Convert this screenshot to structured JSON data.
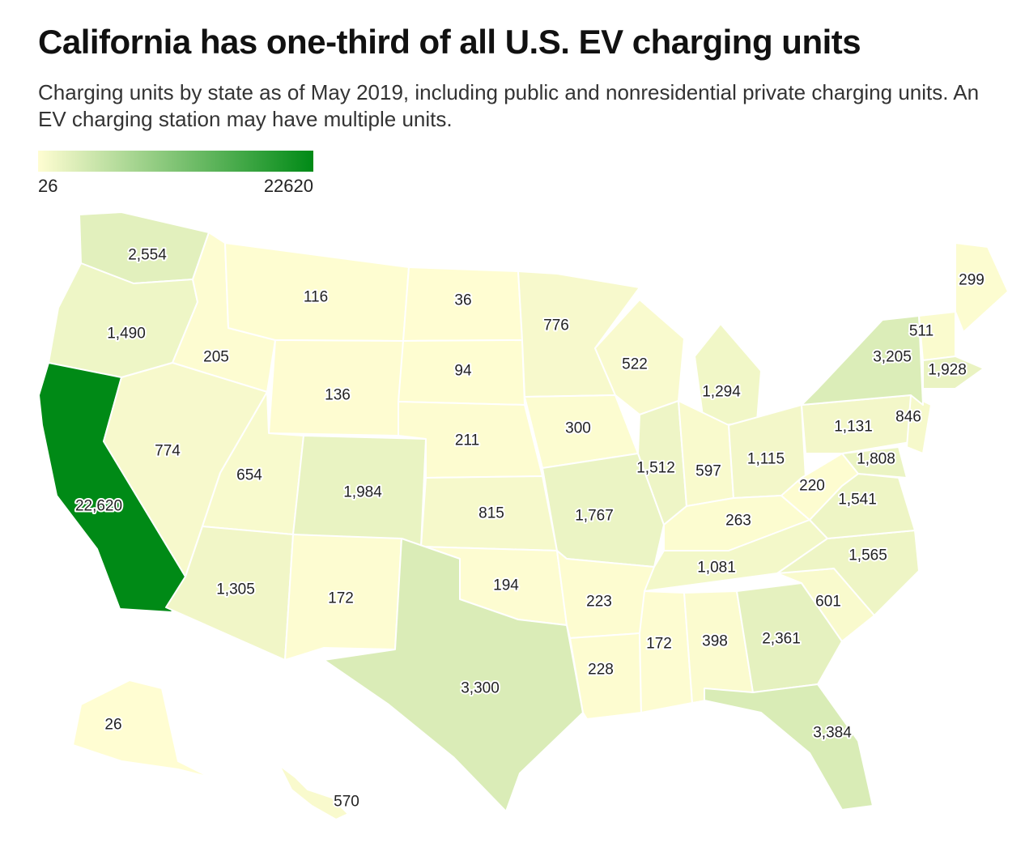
{
  "title": "California has one-third of all U.S. EV charging units",
  "subtitle": "Charging units by state as of May 2019, including public and nonresidential private charging units. An EV charging station may have multiple units.",
  "legend": {
    "min_label": "26",
    "max_label": "22620",
    "min": 26,
    "max": 22620,
    "color_low": "#fffdd2",
    "color_high": "#008a16"
  },
  "states": [
    {
      "id": "WA",
      "label": "2,554",
      "value": 2554
    },
    {
      "id": "OR",
      "label": "1,490",
      "value": 1490
    },
    {
      "id": "CA",
      "label": "22,620",
      "value": 22620
    },
    {
      "id": "ID",
      "label": "205",
      "value": 205
    },
    {
      "id": "NV",
      "label": "774",
      "value": 774
    },
    {
      "id": "MT",
      "label": "116",
      "value": 116
    },
    {
      "id": "WY",
      "label": "136",
      "value": 136
    },
    {
      "id": "UT",
      "label": "654",
      "value": 654
    },
    {
      "id": "AZ",
      "label": "1,305",
      "value": 1305
    },
    {
      "id": "CO",
      "label": "1,984",
      "value": 1984
    },
    {
      "id": "NM",
      "label": "172",
      "value": 172
    },
    {
      "id": "ND",
      "label": "36",
      "value": 36
    },
    {
      "id": "SD",
      "label": "94",
      "value": 94
    },
    {
      "id": "NE",
      "label": "211",
      "value": 211
    },
    {
      "id": "KS",
      "label": "815",
      "value": 815
    },
    {
      "id": "OK",
      "label": "194",
      "value": 194
    },
    {
      "id": "TX",
      "label": "3,300",
      "value": 3300
    },
    {
      "id": "MN",
      "label": "776",
      "value": 776
    },
    {
      "id": "IA",
      "label": "300",
      "value": 300
    },
    {
      "id": "MO",
      "label": "1,767",
      "value": 1767
    },
    {
      "id": "AR",
      "label": "223",
      "value": 223
    },
    {
      "id": "LA",
      "label": "228",
      "value": 228
    },
    {
      "id": "WI",
      "label": "522",
      "value": 522
    },
    {
      "id": "IL",
      "label": "1,512",
      "value": 1512
    },
    {
      "id": "MI",
      "label": "1,294",
      "value": 1294
    },
    {
      "id": "IN",
      "label": "597",
      "value": 597
    },
    {
      "id": "OH",
      "label": "1,115",
      "value": 1115
    },
    {
      "id": "KY",
      "label": "263",
      "value": 263
    },
    {
      "id": "TN",
      "label": "1,081",
      "value": 1081
    },
    {
      "id": "MS",
      "label": "172",
      "value": 172
    },
    {
      "id": "AL",
      "label": "398",
      "value": 398
    },
    {
      "id": "GA",
      "label": "2,361",
      "value": 2361
    },
    {
      "id": "FL",
      "label": "3,384",
      "value": 3384
    },
    {
      "id": "SC",
      "label": "601",
      "value": 601
    },
    {
      "id": "NC",
      "label": "1,565",
      "value": 1565
    },
    {
      "id": "VA",
      "label": "1,541",
      "value": 1541
    },
    {
      "id": "WV",
      "label": "220",
      "value": 220
    },
    {
      "id": "MD",
      "label": "1,808",
      "value": 1808
    },
    {
      "id": "PA",
      "label": "1,131",
      "value": 1131
    },
    {
      "id": "NJ",
      "label": "846",
      "value": 846
    },
    {
      "id": "NY",
      "label": "3,205",
      "value": 3205
    },
    {
      "id": "VT",
      "label": "511",
      "value": 511
    },
    {
      "id": "MA",
      "label": "1,928",
      "value": 1928
    },
    {
      "id": "ME",
      "label": "299",
      "value": 299
    },
    {
      "id": "AK",
      "label": "26",
      "value": 26
    },
    {
      "id": "HI",
      "label": "570",
      "value": 570
    }
  ]
}
